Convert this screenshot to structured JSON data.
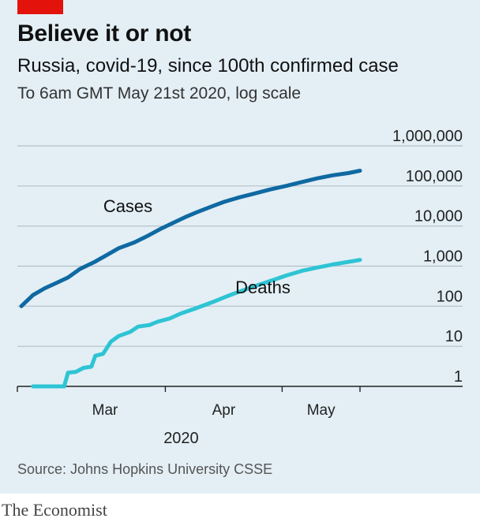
{
  "header": {
    "tag_color": "#e3120b",
    "title": "Believe it or not",
    "subtitle": "Russia, covid-19, since 100th confirmed case",
    "note": "To 6am GMT May 21st 2020, log scale"
  },
  "source": "Source: Johns Hopkins University CSSE",
  "footer": "The Economist",
  "colors": {
    "background": "#e3eff5",
    "grid": "#b4c0c8",
    "axis": "#222222",
    "cases": "#0f69a2",
    "deaths": "#2ec4d4"
  },
  "chart_data": {
    "type": "line",
    "title": "Believe it or not",
    "subtitle": "Russia, covid-19, since 100th confirmed case",
    "y_scale": "log",
    "ylim": [
      1,
      1000000
    ],
    "y_ticks": [
      1,
      10,
      100,
      1000,
      10000,
      100000,
      1000000
    ],
    "y_tick_labels": [
      "1",
      "10",
      "100",
      "1,000",
      "10,000",
      "100,000",
      "1,000,000"
    ],
    "y_axis_side": "right",
    "xlim": [
      "2020-02-24",
      "2020-05-21"
    ],
    "x_ticks": [
      "2020-03-01",
      "2020-04-01",
      "2020-05-01"
    ],
    "x_tick_labels": [
      "Mar",
      "Apr",
      "May"
    ],
    "x_year_label": "2020",
    "grid": true,
    "series": [
      {
        "name": "Cases",
        "color": "#0f69a2",
        "points": [
          [
            "2020-02-24",
            100
          ],
          [
            "2020-02-27",
            190
          ],
          [
            "2020-03-01",
            280
          ],
          [
            "2020-03-04",
            380
          ],
          [
            "2020-03-07",
            520
          ],
          [
            "2020-03-10",
            840
          ],
          [
            "2020-03-14",
            1300
          ],
          [
            "2020-03-17",
            1900
          ],
          [
            "2020-03-20",
            2800
          ],
          [
            "2020-03-24",
            3900
          ],
          [
            "2020-03-27",
            5400
          ],
          [
            "2020-03-31",
            8700
          ],
          [
            "2020-04-03",
            12000
          ],
          [
            "2020-04-06",
            16500
          ],
          [
            "2020-04-09",
            22000
          ],
          [
            "2020-04-13",
            31000
          ],
          [
            "2020-04-16",
            40000
          ],
          [
            "2020-04-20",
            52000
          ],
          [
            "2020-04-24",
            65000
          ],
          [
            "2020-04-28",
            82000
          ],
          [
            "2020-05-02",
            100000
          ],
          [
            "2020-05-06",
            125000
          ],
          [
            "2020-05-10",
            155000
          ],
          [
            "2020-05-14",
            185000
          ],
          [
            "2020-05-18",
            210000
          ],
          [
            "2020-05-21",
            240000
          ]
        ]
      },
      {
        "name": "Deaths",
        "color": "#2ec4d4",
        "points": [
          [
            "2020-02-27",
            1
          ],
          [
            "2020-03-06",
            1
          ],
          [
            "2020-03-07",
            2.2
          ],
          [
            "2020-03-09",
            2.3
          ],
          [
            "2020-03-11",
            2.9
          ],
          [
            "2020-03-13",
            3.1
          ],
          [
            "2020-03-14",
            5.8
          ],
          [
            "2020-03-16",
            6.5
          ],
          [
            "2020-03-18",
            13
          ],
          [
            "2020-03-20",
            18
          ],
          [
            "2020-03-23",
            23
          ],
          [
            "2020-03-25",
            31
          ],
          [
            "2020-03-28",
            34
          ],
          [
            "2020-03-30",
            41
          ],
          [
            "2020-04-02",
            49
          ],
          [
            "2020-04-05",
            66
          ],
          [
            "2020-04-09",
            90
          ],
          [
            "2020-04-13",
            125
          ],
          [
            "2020-04-17",
            180
          ],
          [
            "2020-04-21",
            250
          ],
          [
            "2020-04-25",
            340
          ],
          [
            "2020-04-29",
            460
          ],
          [
            "2020-05-02",
            580
          ],
          [
            "2020-05-06",
            760
          ],
          [
            "2020-05-10",
            920
          ],
          [
            "2020-05-14",
            1100
          ],
          [
            "2020-05-18",
            1280
          ],
          [
            "2020-05-21",
            1430
          ]
        ]
      }
    ],
    "annotations": [
      {
        "text": "Cases",
        "series": "Cases"
      },
      {
        "text": "Deaths",
        "series": "Deaths"
      }
    ]
  }
}
